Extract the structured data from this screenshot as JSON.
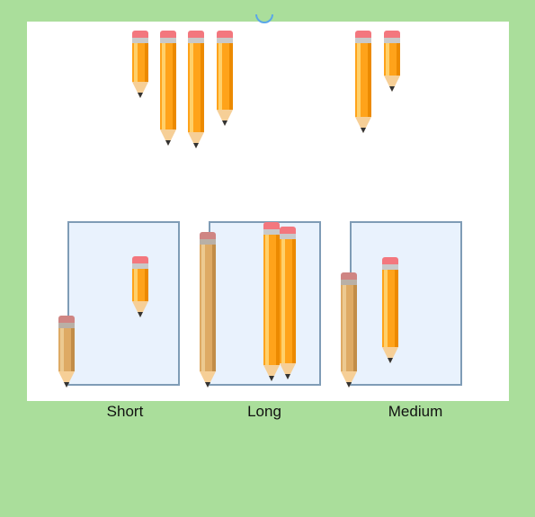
{
  "colors": {
    "background": "#aade9b",
    "board": "#ffffff",
    "bin_fill": "#e9f2fd",
    "bin_border": "#7f9cb6",
    "pencil_orange": "#ffa31a",
    "pencil_tan": "#deaa64"
  },
  "bins": [
    {
      "label": "Short"
    },
    {
      "label": "Long"
    },
    {
      "label": "Medium"
    }
  ],
  "pencil_icon": "pencil-icon"
}
